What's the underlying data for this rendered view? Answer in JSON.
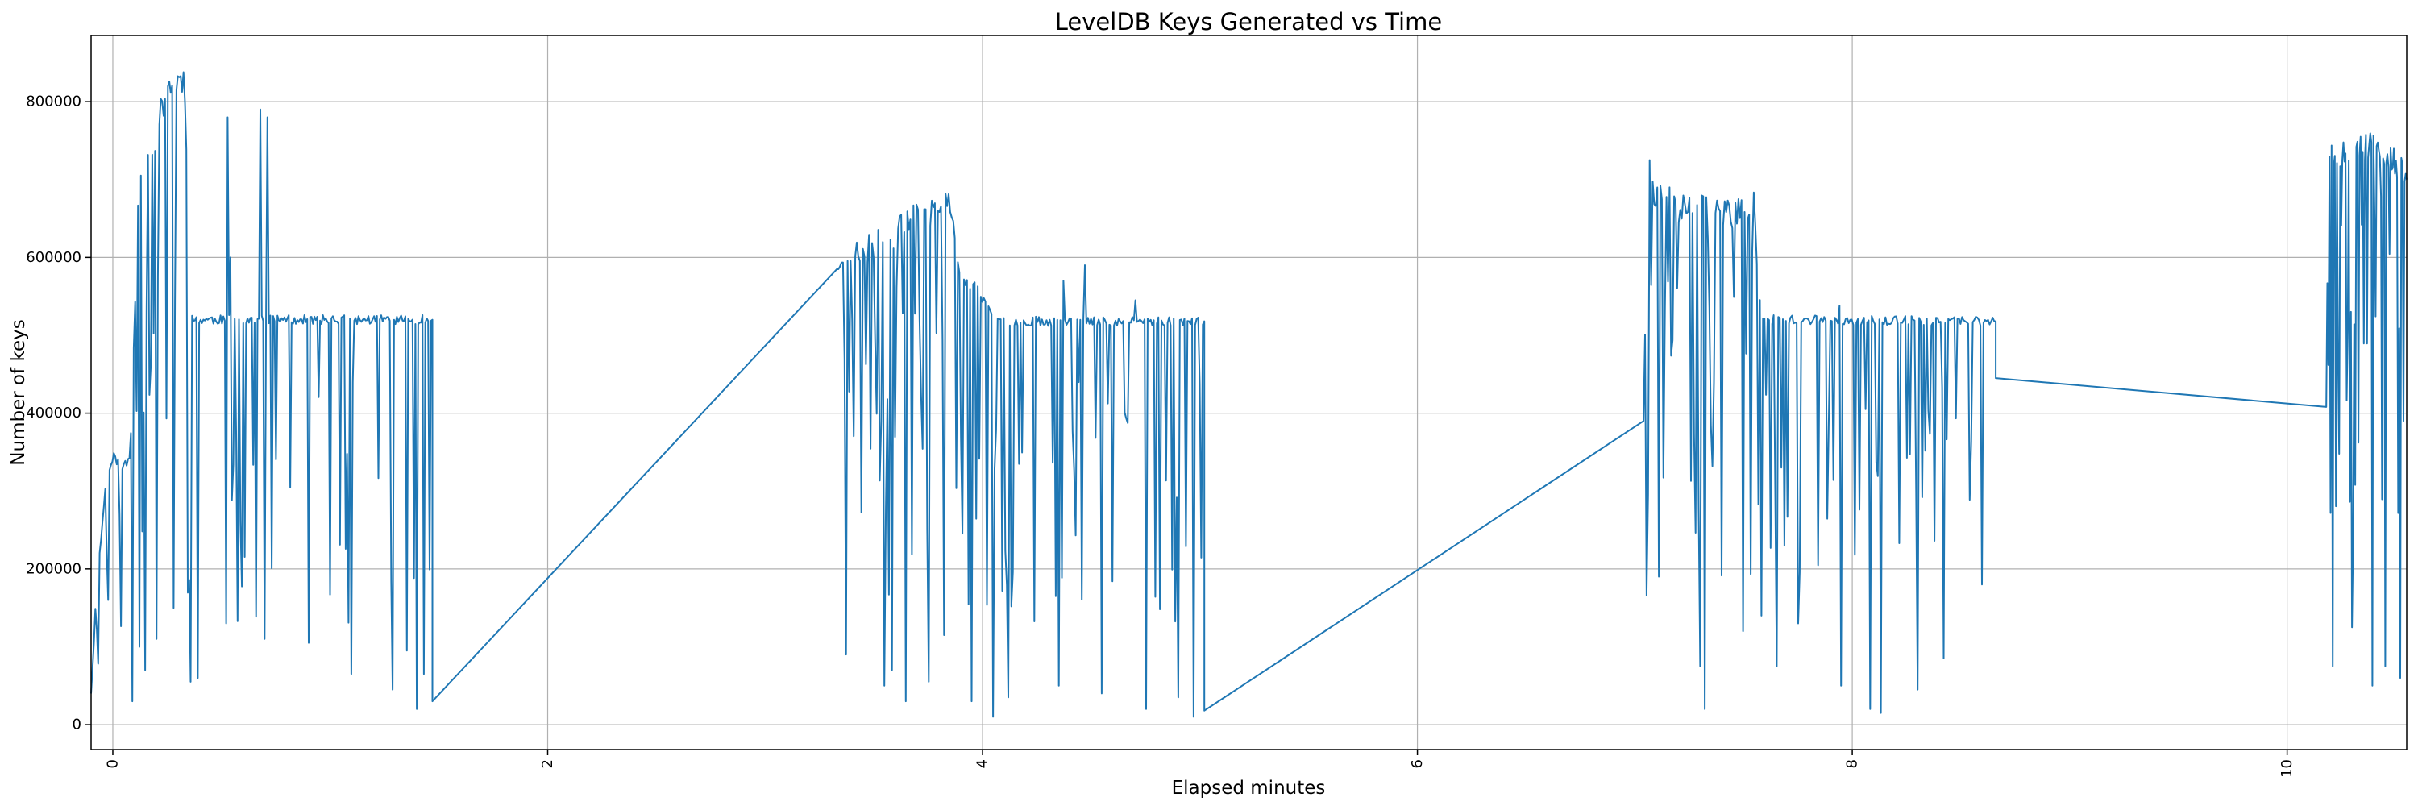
{
  "chart_data": {
    "type": "line",
    "title": "LevelDB Keys Generated vs Time",
    "xlabel": "Elapsed minutes",
    "ylabel": "Number of keys",
    "xlim": [
      -0.1,
      10.55
    ],
    "ylim": [
      -32000,
      885000
    ],
    "xticks": [
      0,
      2,
      4,
      6,
      8,
      10
    ],
    "xtick_labels": [
      "0",
      "2",
      "4",
      "6",
      "8",
      "10"
    ],
    "xtick_rotation": 90,
    "yticks": [
      0,
      200000,
      400000,
      600000,
      800000
    ],
    "ytick_labels": [
      "0",
      "200000",
      "400000",
      "600000",
      "800000"
    ],
    "grid": true,
    "line_color": "#1f77b4",
    "series": [
      {
        "segments": [
          {
            "x_start": -0.1,
            "x_end": 1.47,
            "count": 240,
            "seed": 11,
            "anchors": [
              [
                -0.1,
                40000
              ],
              [
                -0.07,
                200000
              ],
              [
                -0.05,
                250000
              ],
              [
                -0.03,
                320000
              ],
              [
                0.0,
                345000
              ],
              [
                0.05,
                330000
              ],
              [
                0.08,
                345000
              ],
              [
                0.12,
                700000
              ],
              [
                0.2,
                760000
              ],
              [
                0.25,
                820000
              ],
              [
                0.33,
                830000
              ],
              [
                0.36,
                520000
              ],
              [
                1.47,
                520000
              ]
            ],
            "dips": [
              [
                -0.02,
                160000
              ],
              [
                0.03,
                270000
              ],
              [
                0.09,
                30000
              ],
              [
                0.12,
                100000
              ],
              [
                0.15,
                70000
              ],
              [
                0.2,
                110000
              ],
              [
                0.28,
                150000
              ],
              [
                0.36,
                55000
              ],
              [
                0.39,
                60000
              ],
              [
                0.52,
                130000
              ],
              [
                0.7,
                110000
              ],
              [
                0.9,
                105000
              ],
              [
                1.1,
                65000
              ],
              [
                1.29,
                45000
              ],
              [
                1.35,
                95000
              ],
              [
                1.4,
                20000
              ],
              [
                1.43,
                65000
              ]
            ],
            "spikes": [
              [
                0.52,
                780000
              ],
              [
                0.68,
                790000
              ],
              [
                0.71,
                780000
              ],
              [
                0.54,
                600000
              ]
            ]
          },
          {
            "x_start": 1.47,
            "x_end": 3.33,
            "linear": true,
            "points": [
              [
                1.47,
                30000
              ],
              [
                3.33,
                585000
              ]
            ]
          },
          {
            "x_start": 3.33,
            "x_end": 5.02,
            "count": 240,
            "seed": 23,
            "anchors": [
              [
                3.33,
                585000
              ],
              [
                3.4,
                600000
              ],
              [
                3.5,
                615000
              ],
              [
                3.6,
                630000
              ],
              [
                3.7,
                655000
              ],
              [
                3.85,
                665000
              ],
              [
                3.9,
                570000
              ],
              [
                3.98,
                560000
              ],
              [
                4.05,
                518000
              ],
              [
                5.02,
                518000
              ]
            ],
            "dips": [
              [
                3.37,
                90000
              ],
              [
                3.55,
                50000
              ],
              [
                3.58,
                70000
              ],
              [
                3.65,
                30000
              ],
              [
                3.75,
                55000
              ],
              [
                3.82,
                115000
              ],
              [
                3.95,
                30000
              ],
              [
                4.05,
                10000
              ],
              [
                4.12,
                35000
              ],
              [
                4.35,
                50000
              ],
              [
                4.55,
                40000
              ],
              [
                4.75,
                20000
              ],
              [
                4.9,
                35000
              ],
              [
                4.97,
                10000
              ]
            ],
            "spikes": [
              [
                4.37,
                570000
              ],
              [
                4.47,
                590000
              ],
              [
                4.7,
                545000
              ]
            ]
          },
          {
            "x_start": 5.02,
            "x_end": 7.04,
            "linear": true,
            "points": [
              [
                5.02,
                18000
              ],
              [
                7.04,
                390000
              ]
            ]
          },
          {
            "x_start": 7.04,
            "x_end": 8.66,
            "count": 230,
            "seed": 37,
            "anchors": [
              [
                7.04,
                390000
              ],
              [
                7.06,
                700000
              ],
              [
                7.1,
                680000
              ],
              [
                7.2,
                665000
              ],
              [
                7.35,
                660000
              ],
              [
                7.48,
                655000
              ],
              [
                7.55,
                665000
              ],
              [
                7.58,
                520000
              ],
              [
                8.66,
                518000
              ]
            ],
            "dips": [
              [
                7.11,
                190000
              ],
              [
                7.3,
                75000
              ],
              [
                7.32,
                20000
              ],
              [
                7.5,
                120000
              ],
              [
                7.65,
                75000
              ],
              [
                7.75,
                130000
              ],
              [
                7.95,
                50000
              ],
              [
                8.08,
                20000
              ],
              [
                8.13,
                15000
              ],
              [
                8.3,
                45000
              ],
              [
                8.42,
                85000
              ],
              [
                8.6,
                180000
              ]
            ],
            "spikes": [
              [
                7.07,
                725000
              ],
              [
                7.94,
                538000
              ]
            ]
          },
          {
            "x_start": 8.66,
            "x_end": 10.18,
            "linear": true,
            "points": [
              [
                8.66,
                445000
              ],
              [
                10.18,
                408000
              ]
            ]
          },
          {
            "x_start": 10.18,
            "x_end": 10.55,
            "count": 75,
            "seed": 53,
            "anchors": [
              [
                10.18,
                408000
              ],
              [
                10.19,
                740000
              ],
              [
                10.3,
                730000
              ],
              [
                10.4,
                745000
              ],
              [
                10.48,
                730000
              ],
              [
                10.55,
                700000
              ]
            ],
            "dips": [
              [
                10.21,
                75000
              ],
              [
                10.3,
                125000
              ],
              [
                10.39,
                50000
              ],
              [
                10.45,
                75000
              ],
              [
                10.52,
                60000
              ]
            ],
            "spikes": [
              [
                10.34,
                755000
              ]
            ]
          }
        ]
      }
    ]
  }
}
